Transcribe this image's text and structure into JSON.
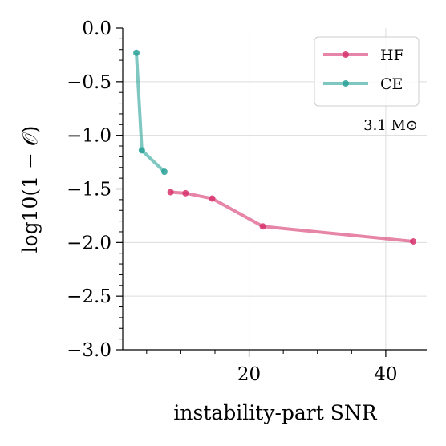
{
  "chart_data": {
    "type": "line",
    "xlabel": "instability-part SNR",
    "ylabel": "log10(1 − 𝒪)",
    "xlim": [
      1.5,
      46.0
    ],
    "ylim": [
      -3.0,
      0.0
    ],
    "x_major_ticks": [
      20,
      40
    ],
    "x_tick_labels": [
      "20",
      "40"
    ],
    "y_major_ticks": [
      0.0,
      -0.5,
      -1.0,
      -1.5,
      -2.0,
      -2.5,
      -3.0
    ],
    "y_tick_labels": [
      "0.0",
      "−0.5",
      "−1.0",
      "−1.5",
      "−2.0",
      "−2.5",
      "−3.0"
    ],
    "grid": true,
    "legend_position": "top-right",
    "annotation": "3.1 M⊙",
    "series": [
      {
        "name": "HF",
        "color": "#d6336c",
        "x": [
          8.5,
          10.7,
          14.6,
          22.0,
          44.0
        ],
        "y": [
          -1.53,
          -1.54,
          -1.59,
          -1.85,
          -1.99
        ]
      },
      {
        "name": "CE",
        "color": "#2aa198",
        "x": [
          3.5,
          4.3,
          7.6
        ],
        "y": [
          -0.23,
          -1.14,
          -1.34
        ]
      }
    ]
  }
}
